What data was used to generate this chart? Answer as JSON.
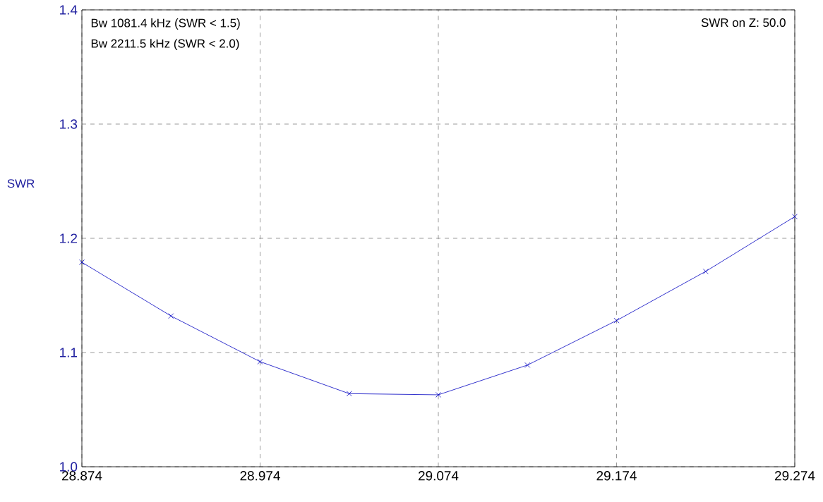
{
  "chart_data": {
    "type": "line",
    "ylabel": "SWR",
    "annotations": [
      "Bw 1081.4 kHz (SWR < 1.5)",
      "Bw 2211.5 kHz (SWR < 2.0)",
      "SWR on Z: 50.0"
    ],
    "x": [
      28.874,
      28.924,
      28.974,
      29.024,
      29.074,
      29.124,
      29.174,
      29.224,
      29.274
    ],
    "series": [
      {
        "color": "#0000c0",
        "values": [
          1.179,
          1.132,
          1.092,
          1.064,
          1.063,
          1.089,
          1.128,
          1.171,
          1.219
        ]
      }
    ],
    "xlim": [
      28.874,
      29.274
    ],
    "ylim": [
      1.0,
      1.4
    ],
    "xticks": [
      28.874,
      28.974,
      29.074,
      29.174,
      29.274
    ],
    "yticks": [
      {
        "value": 1.0,
        "label": "1.0"
      },
      1.1,
      1.2,
      1.3,
      1.4
    ],
    "grid": true,
    "marker": "cross",
    "line_style": "solid"
  }
}
